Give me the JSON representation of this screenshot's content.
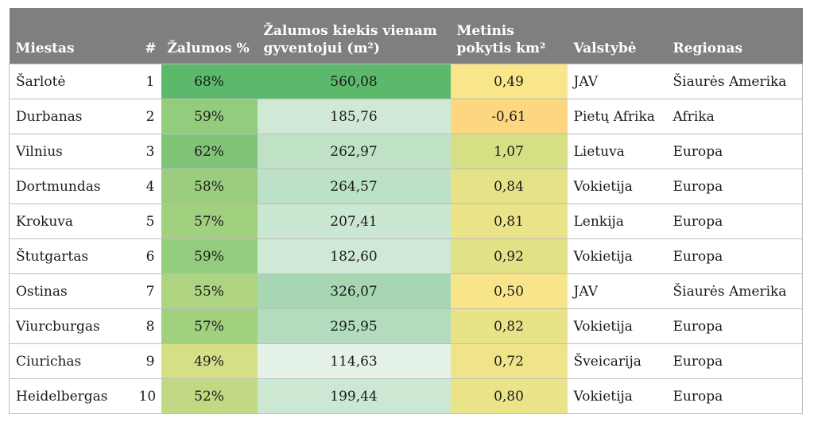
{
  "table": {
    "headers": {
      "city": "Miestas",
      "rank": "#",
      "green_pct": "Žalumos %",
      "green_per_capita_line1": "Žalumos kiekis vienam",
      "green_per_capita_line2": "gyventojui (m²)",
      "annual_change_line1": "Metinis",
      "annual_change_line2": "pokytis km²",
      "country": "Valstybė",
      "region": "Regionas"
    },
    "rows": [
      {
        "city": "Šarlotė",
        "rank": "1",
        "green_pct": "68%",
        "green_per_capita": "560,08",
        "annual_change": "0,49",
        "country": "JAV",
        "region": "Šiaurės Amerika",
        "colors": {
          "green_pct": "#5cb96b",
          "green_per_capita": "#5cb96b",
          "annual_change": "#f9e58a"
        }
      },
      {
        "city": "Durbanas",
        "rank": "2",
        "green_pct": "59%",
        "green_per_capita": "185,76",
        "annual_change": "-0,61",
        "country": "Pietų Afrika",
        "region": "Afrika",
        "colors": {
          "green_pct": "#94cc7d",
          "green_per_capita": "#cfe9d6",
          "annual_change": "#fdd680"
        }
      },
      {
        "city": "Vilnius",
        "rank": "3",
        "green_pct": "62%",
        "green_per_capita": "262,97",
        "annual_change": "1,07",
        "country": "Lietuva",
        "region": "Europa",
        "colors": {
          "green_pct": "#80c477",
          "green_per_capita": "#bfe2c7",
          "annual_change": "#d7df84"
        }
      },
      {
        "city": "Dortmundas",
        "rank": "4",
        "green_pct": "58%",
        "green_per_capita": "264,57",
        "annual_change": "0,84",
        "country": "Vokietija",
        "region": "Europa",
        "colors": {
          "green_pct": "#9acd7e",
          "green_per_capita": "#bde1c6",
          "annual_change": "#e6e287"
        }
      },
      {
        "city": "Krokuva",
        "rank": "5",
        "green_pct": "57%",
        "green_per_capita": "207,41",
        "annual_change": "0,81",
        "country": "Lenkija",
        "region": "Europa",
        "colors": {
          "green_pct": "#a1d07f",
          "green_per_capita": "#cae7d1",
          "annual_change": "#ebe388"
        }
      },
      {
        "city": "Štutgartas",
        "rank": "6",
        "green_pct": "59%",
        "green_per_capita": "182,60",
        "annual_change": "0,92",
        "country": "Vokietija",
        "region": "Europa",
        "colors": {
          "green_pct": "#94cc7d",
          "green_per_capita": "#d0e9d7",
          "annual_change": "#e1e186"
        }
      },
      {
        "city": "Ostinas",
        "rank": "7",
        "green_pct": "55%",
        "green_per_capita": "326,07",
        "annual_change": "0,50",
        "country": "JAV",
        "region": "Šiaurės Amerika",
        "colors": {
          "green_pct": "#aed482",
          "green_per_capita": "#a6d7b2",
          "annual_change": "#f8e58a"
        }
      },
      {
        "city": "Viurcburgas",
        "rank": "8",
        "green_pct": "57%",
        "green_per_capita": "295,95",
        "annual_change": "0,82",
        "country": "Vokietija",
        "region": "Europa",
        "colors": {
          "green_pct": "#a1d07f",
          "green_per_capita": "#b2dcbd",
          "annual_change": "#e9e388"
        }
      },
      {
        "city": "Ciurichas",
        "rank": "9",
        "green_pct": "49%",
        "green_per_capita": "114,63",
        "annual_change": "0,72",
        "country": "Šveicarija",
        "region": "Europa",
        "colors": {
          "green_pct": "#d6de86",
          "green_per_capita": "#e4f2e8",
          "annual_change": "#efe489"
        }
      },
      {
        "city": "Heidelbergas",
        "rank": "10",
        "green_pct": "52%",
        "green_per_capita": "199,44",
        "annual_change": "0,80",
        "country": "Vokietija",
        "region": "Europa",
        "colors": {
          "green_pct": "#c2d984",
          "green_per_capita": "#cce8d3",
          "annual_change": "#ebe388"
        }
      }
    ]
  }
}
